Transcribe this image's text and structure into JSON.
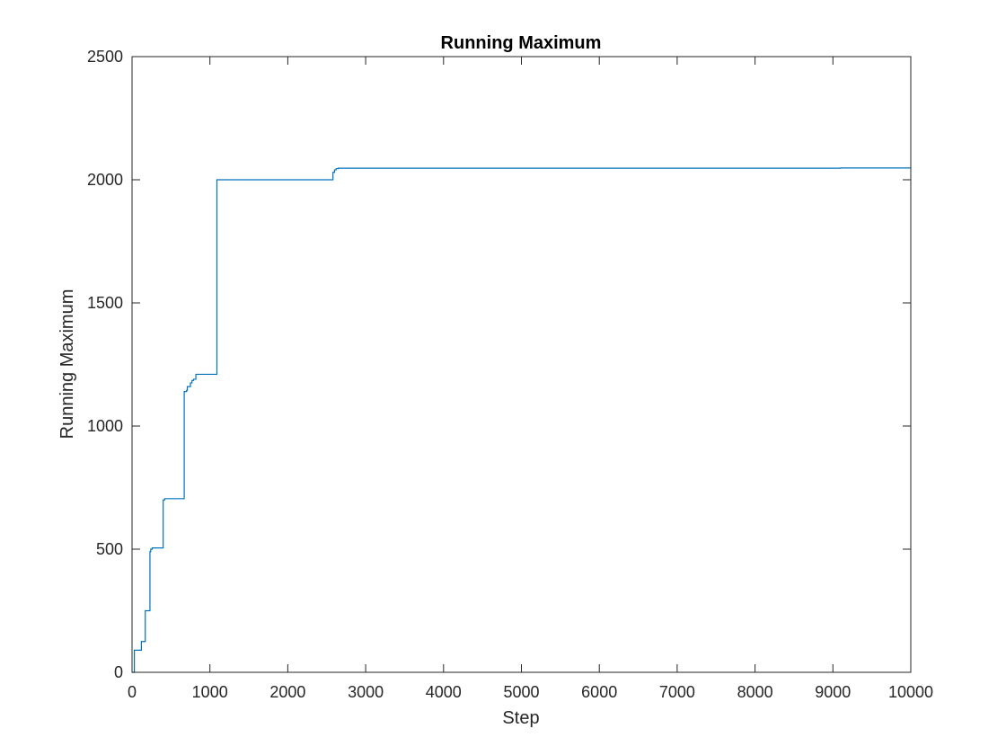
{
  "chart_data": {
    "type": "line",
    "title": "Running Maximum",
    "xlabel": "Step",
    "ylabel": "Running Maximum",
    "xlim": [
      0,
      10000
    ],
    "ylim": [
      0,
      2500
    ],
    "xticks": [
      0,
      1000,
      2000,
      3000,
      4000,
      5000,
      6000,
      7000,
      8000,
      9000,
      10000
    ],
    "yticks": [
      0,
      500,
      1000,
      1500,
      2000,
      2500
    ],
    "grid": false,
    "line_color": "#0072BD",
    "series": [
      {
        "name": "Running Maximum",
        "step": true,
        "x": [
          0,
          30,
          80,
          120,
          170,
          210,
          230,
          240,
          260,
          380,
          400,
          420,
          500,
          650,
          670,
          690,
          700,
          710,
          720,
          750,
          770,
          790,
          820,
          850,
          900,
          1050,
          1090,
          1100,
          1150,
          1200,
          1500,
          2000,
          2400,
          2580,
          2600,
          2620,
          2650,
          3000,
          5000,
          7000,
          9000,
          9100,
          10000
        ],
        "y": [
          0,
          90,
          90,
          125,
          250,
          250,
          490,
          500,
          505,
          505,
          700,
          705,
          705,
          705,
          1140,
          1140,
          1145,
          1160,
          1160,
          1175,
          1185,
          1190,
          1210,
          1210,
          1210,
          1210,
          2000,
          2000,
          2000,
          2000,
          2000,
          2000,
          2000,
          2030,
          2040,
          2045,
          2047,
          2047,
          2047,
          2047,
          2047,
          2048,
          2048
        ]
      }
    ]
  }
}
